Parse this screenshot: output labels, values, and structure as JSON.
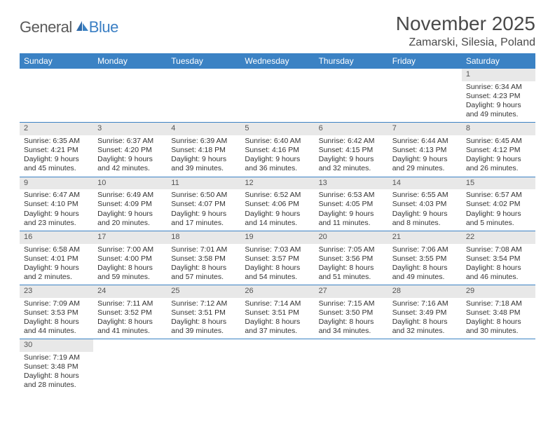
{
  "brand": {
    "general": "General",
    "blue": "Blue"
  },
  "title": "November 2025",
  "location": "Zamarski, Silesia, Poland",
  "colors": {
    "header_bg": "#3b82c4",
    "header_text": "#ffffff",
    "daynum_bg": "#e8e8e8",
    "row_divider": "#3b82c4",
    "text": "#333333",
    "title_text": "#4a4a4a",
    "logo_gray": "#5a5a5a",
    "logo_blue": "#3b7fc4"
  },
  "weekdays": [
    "Sunday",
    "Monday",
    "Tuesday",
    "Wednesday",
    "Thursday",
    "Friday",
    "Saturday"
  ],
  "weeks": [
    [
      null,
      null,
      null,
      null,
      null,
      null,
      {
        "n": "1",
        "sr": "6:34 AM",
        "ss": "4:23 PM",
        "dl": "9 hours and 49 minutes."
      }
    ],
    [
      {
        "n": "2",
        "sr": "6:35 AM",
        "ss": "4:21 PM",
        "dl": "9 hours and 45 minutes."
      },
      {
        "n": "3",
        "sr": "6:37 AM",
        "ss": "4:20 PM",
        "dl": "9 hours and 42 minutes."
      },
      {
        "n": "4",
        "sr": "6:39 AM",
        "ss": "4:18 PM",
        "dl": "9 hours and 39 minutes."
      },
      {
        "n": "5",
        "sr": "6:40 AM",
        "ss": "4:16 PM",
        "dl": "9 hours and 36 minutes."
      },
      {
        "n": "6",
        "sr": "6:42 AM",
        "ss": "4:15 PM",
        "dl": "9 hours and 32 minutes."
      },
      {
        "n": "7",
        "sr": "6:44 AM",
        "ss": "4:13 PM",
        "dl": "9 hours and 29 minutes."
      },
      {
        "n": "8",
        "sr": "6:45 AM",
        "ss": "4:12 PM",
        "dl": "9 hours and 26 minutes."
      }
    ],
    [
      {
        "n": "9",
        "sr": "6:47 AM",
        "ss": "4:10 PM",
        "dl": "9 hours and 23 minutes."
      },
      {
        "n": "10",
        "sr": "6:49 AM",
        "ss": "4:09 PM",
        "dl": "9 hours and 20 minutes."
      },
      {
        "n": "11",
        "sr": "6:50 AM",
        "ss": "4:07 PM",
        "dl": "9 hours and 17 minutes."
      },
      {
        "n": "12",
        "sr": "6:52 AM",
        "ss": "4:06 PM",
        "dl": "9 hours and 14 minutes."
      },
      {
        "n": "13",
        "sr": "6:53 AM",
        "ss": "4:05 PM",
        "dl": "9 hours and 11 minutes."
      },
      {
        "n": "14",
        "sr": "6:55 AM",
        "ss": "4:03 PM",
        "dl": "9 hours and 8 minutes."
      },
      {
        "n": "15",
        "sr": "6:57 AM",
        "ss": "4:02 PM",
        "dl": "9 hours and 5 minutes."
      }
    ],
    [
      {
        "n": "16",
        "sr": "6:58 AM",
        "ss": "4:01 PM",
        "dl": "9 hours and 2 minutes."
      },
      {
        "n": "17",
        "sr": "7:00 AM",
        "ss": "4:00 PM",
        "dl": "8 hours and 59 minutes."
      },
      {
        "n": "18",
        "sr": "7:01 AM",
        "ss": "3:58 PM",
        "dl": "8 hours and 57 minutes."
      },
      {
        "n": "19",
        "sr": "7:03 AM",
        "ss": "3:57 PM",
        "dl": "8 hours and 54 minutes."
      },
      {
        "n": "20",
        "sr": "7:05 AM",
        "ss": "3:56 PM",
        "dl": "8 hours and 51 minutes."
      },
      {
        "n": "21",
        "sr": "7:06 AM",
        "ss": "3:55 PM",
        "dl": "8 hours and 49 minutes."
      },
      {
        "n": "22",
        "sr": "7:08 AM",
        "ss": "3:54 PM",
        "dl": "8 hours and 46 minutes."
      }
    ],
    [
      {
        "n": "23",
        "sr": "7:09 AM",
        "ss": "3:53 PM",
        "dl": "8 hours and 44 minutes."
      },
      {
        "n": "24",
        "sr": "7:11 AM",
        "ss": "3:52 PM",
        "dl": "8 hours and 41 minutes."
      },
      {
        "n": "25",
        "sr": "7:12 AM",
        "ss": "3:51 PM",
        "dl": "8 hours and 39 minutes."
      },
      {
        "n": "26",
        "sr": "7:14 AM",
        "ss": "3:51 PM",
        "dl": "8 hours and 37 minutes."
      },
      {
        "n": "27",
        "sr": "7:15 AM",
        "ss": "3:50 PM",
        "dl": "8 hours and 34 minutes."
      },
      {
        "n": "28",
        "sr": "7:16 AM",
        "ss": "3:49 PM",
        "dl": "8 hours and 32 minutes."
      },
      {
        "n": "29",
        "sr": "7:18 AM",
        "ss": "3:48 PM",
        "dl": "8 hours and 30 minutes."
      }
    ],
    [
      {
        "n": "30",
        "sr": "7:19 AM",
        "ss": "3:48 PM",
        "dl": "8 hours and 28 minutes."
      },
      null,
      null,
      null,
      null,
      null,
      null
    ]
  ],
  "labels": {
    "sunrise": "Sunrise:",
    "sunset": "Sunset:",
    "daylight": "Daylight:"
  }
}
